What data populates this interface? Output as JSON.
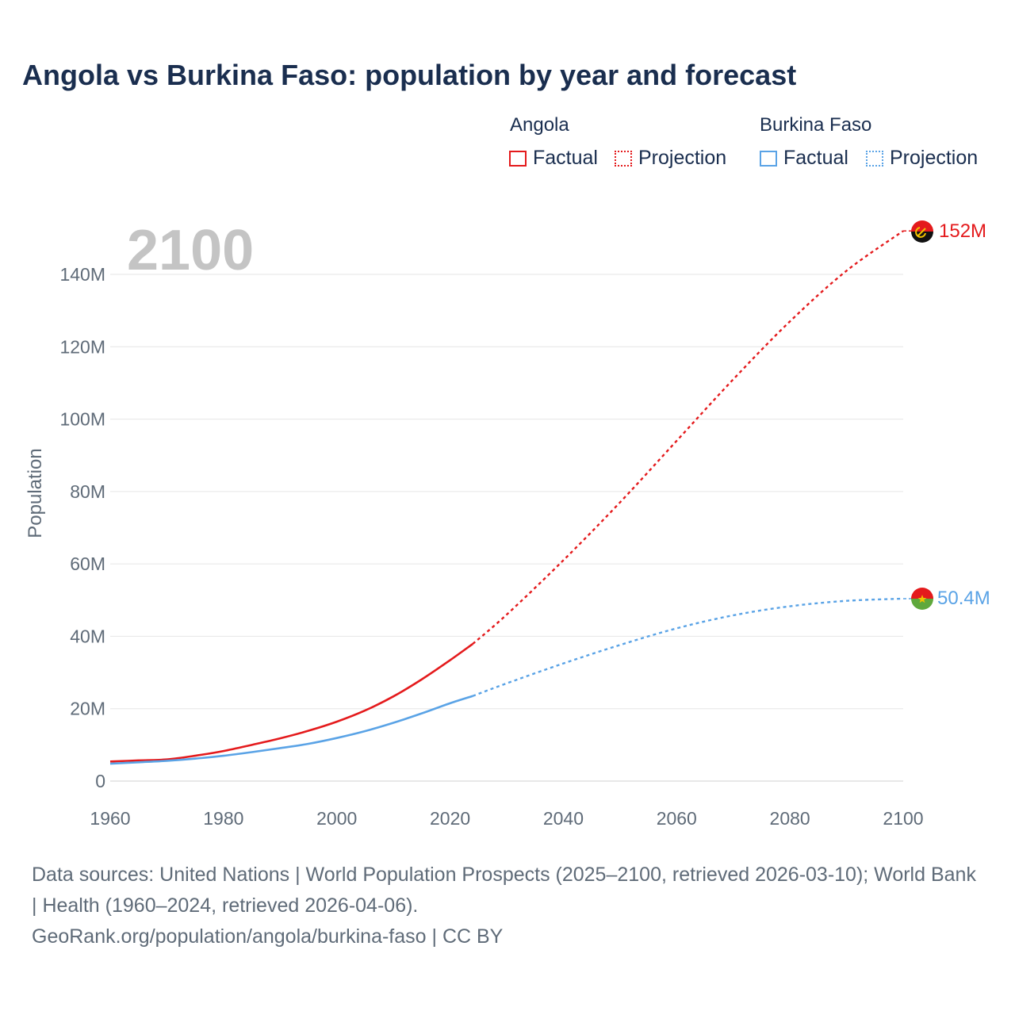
{
  "chart_data": {
    "type": "line",
    "title": "Angola vs Burkina Faso: population by year and forecast",
    "ylabel": "Population",
    "xlabel": "",
    "year_label": "2100",
    "xlim": [
      1960,
      2100
    ],
    "ylim": [
      0,
      140000000
    ],
    "x_ticks": [
      {
        "value": 1960,
        "label": "1960"
      },
      {
        "value": 1980,
        "label": "1980"
      },
      {
        "value": 2000,
        "label": "2000"
      },
      {
        "value": 2020,
        "label": "2020"
      },
      {
        "value": 2040,
        "label": "2040"
      },
      {
        "value": 2060,
        "label": "2060"
      },
      {
        "value": 2080,
        "label": "2080"
      },
      {
        "value": 2100,
        "label": "2100"
      }
    ],
    "y_ticks": [
      {
        "value": 0,
        "label": "0"
      },
      {
        "value": 20000000,
        "label": "20M"
      },
      {
        "value": 40000000,
        "label": "40M"
      },
      {
        "value": 60000000,
        "label": "60M"
      },
      {
        "value": 80000000,
        "label": "80M"
      },
      {
        "value": 100000000,
        "label": "100M"
      },
      {
        "value": 120000000,
        "label": "120M"
      },
      {
        "value": 140000000,
        "label": "140M"
      }
    ],
    "legend": {
      "groups": [
        {
          "name": "Angola",
          "factual": "Factual",
          "projection": "Projection"
        },
        {
          "name": "Burkina Faso",
          "factual": "Factual",
          "projection": "Projection"
        }
      ]
    },
    "series": [
      {
        "name": "Angola",
        "color": "#e41a1c",
        "end_label": "152M",
        "factual": {
          "x": [
            1960,
            1965,
            1970,
            1975,
            1980,
            1985,
            1990,
            1995,
            2000,
            2005,
            2010,
            2015,
            2020,
            2024
          ],
          "values": [
            5400000,
            5700000,
            6000000,
            7000000,
            8300000,
            10000000,
            11800000,
            13900000,
            16400000,
            19500000,
            23400000,
            28100000,
            33400000,
            37900000
          ]
        },
        "projection": {
          "x": [
            2024,
            2030,
            2040,
            2050,
            2060,
            2070,
            2080,
            2090,
            2100
          ],
          "values": [
            37900000,
            46000000,
            61000000,
            77000000,
            94000000,
            111000000,
            127000000,
            141000000,
            152000000
          ]
        }
      },
      {
        "name": "Burkina Faso",
        "color": "#5aa3e6",
        "end_label": "50.4M",
        "factual": {
          "x": [
            1960,
            1965,
            1970,
            1975,
            1980,
            1985,
            1990,
            1995,
            2000,
            2005,
            2010,
            2015,
            2020,
            2024
          ],
          "values": [
            4800000,
            5200000,
            5600000,
            6200000,
            7000000,
            8000000,
            9100000,
            10300000,
            11900000,
            13800000,
            16100000,
            18700000,
            21500000,
            23500000
          ]
        },
        "projection": {
          "x": [
            2024,
            2030,
            2040,
            2050,
            2060,
            2070,
            2080,
            2090,
            2100
          ],
          "values": [
            23500000,
            27000000,
            32500000,
            37600000,
            42200000,
            45800000,
            48300000,
            49800000,
            50400000
          ]
        }
      }
    ]
  },
  "footer": {
    "line1": "Data sources: United Nations | World Population Prospects (2025–2100, retrieved 2026-03-10); World Bank | Health (1960–2024, retrieved 2026-04-06).",
    "line2": "GeoRank.org/population/angola/burkina-faso | CC BY"
  }
}
